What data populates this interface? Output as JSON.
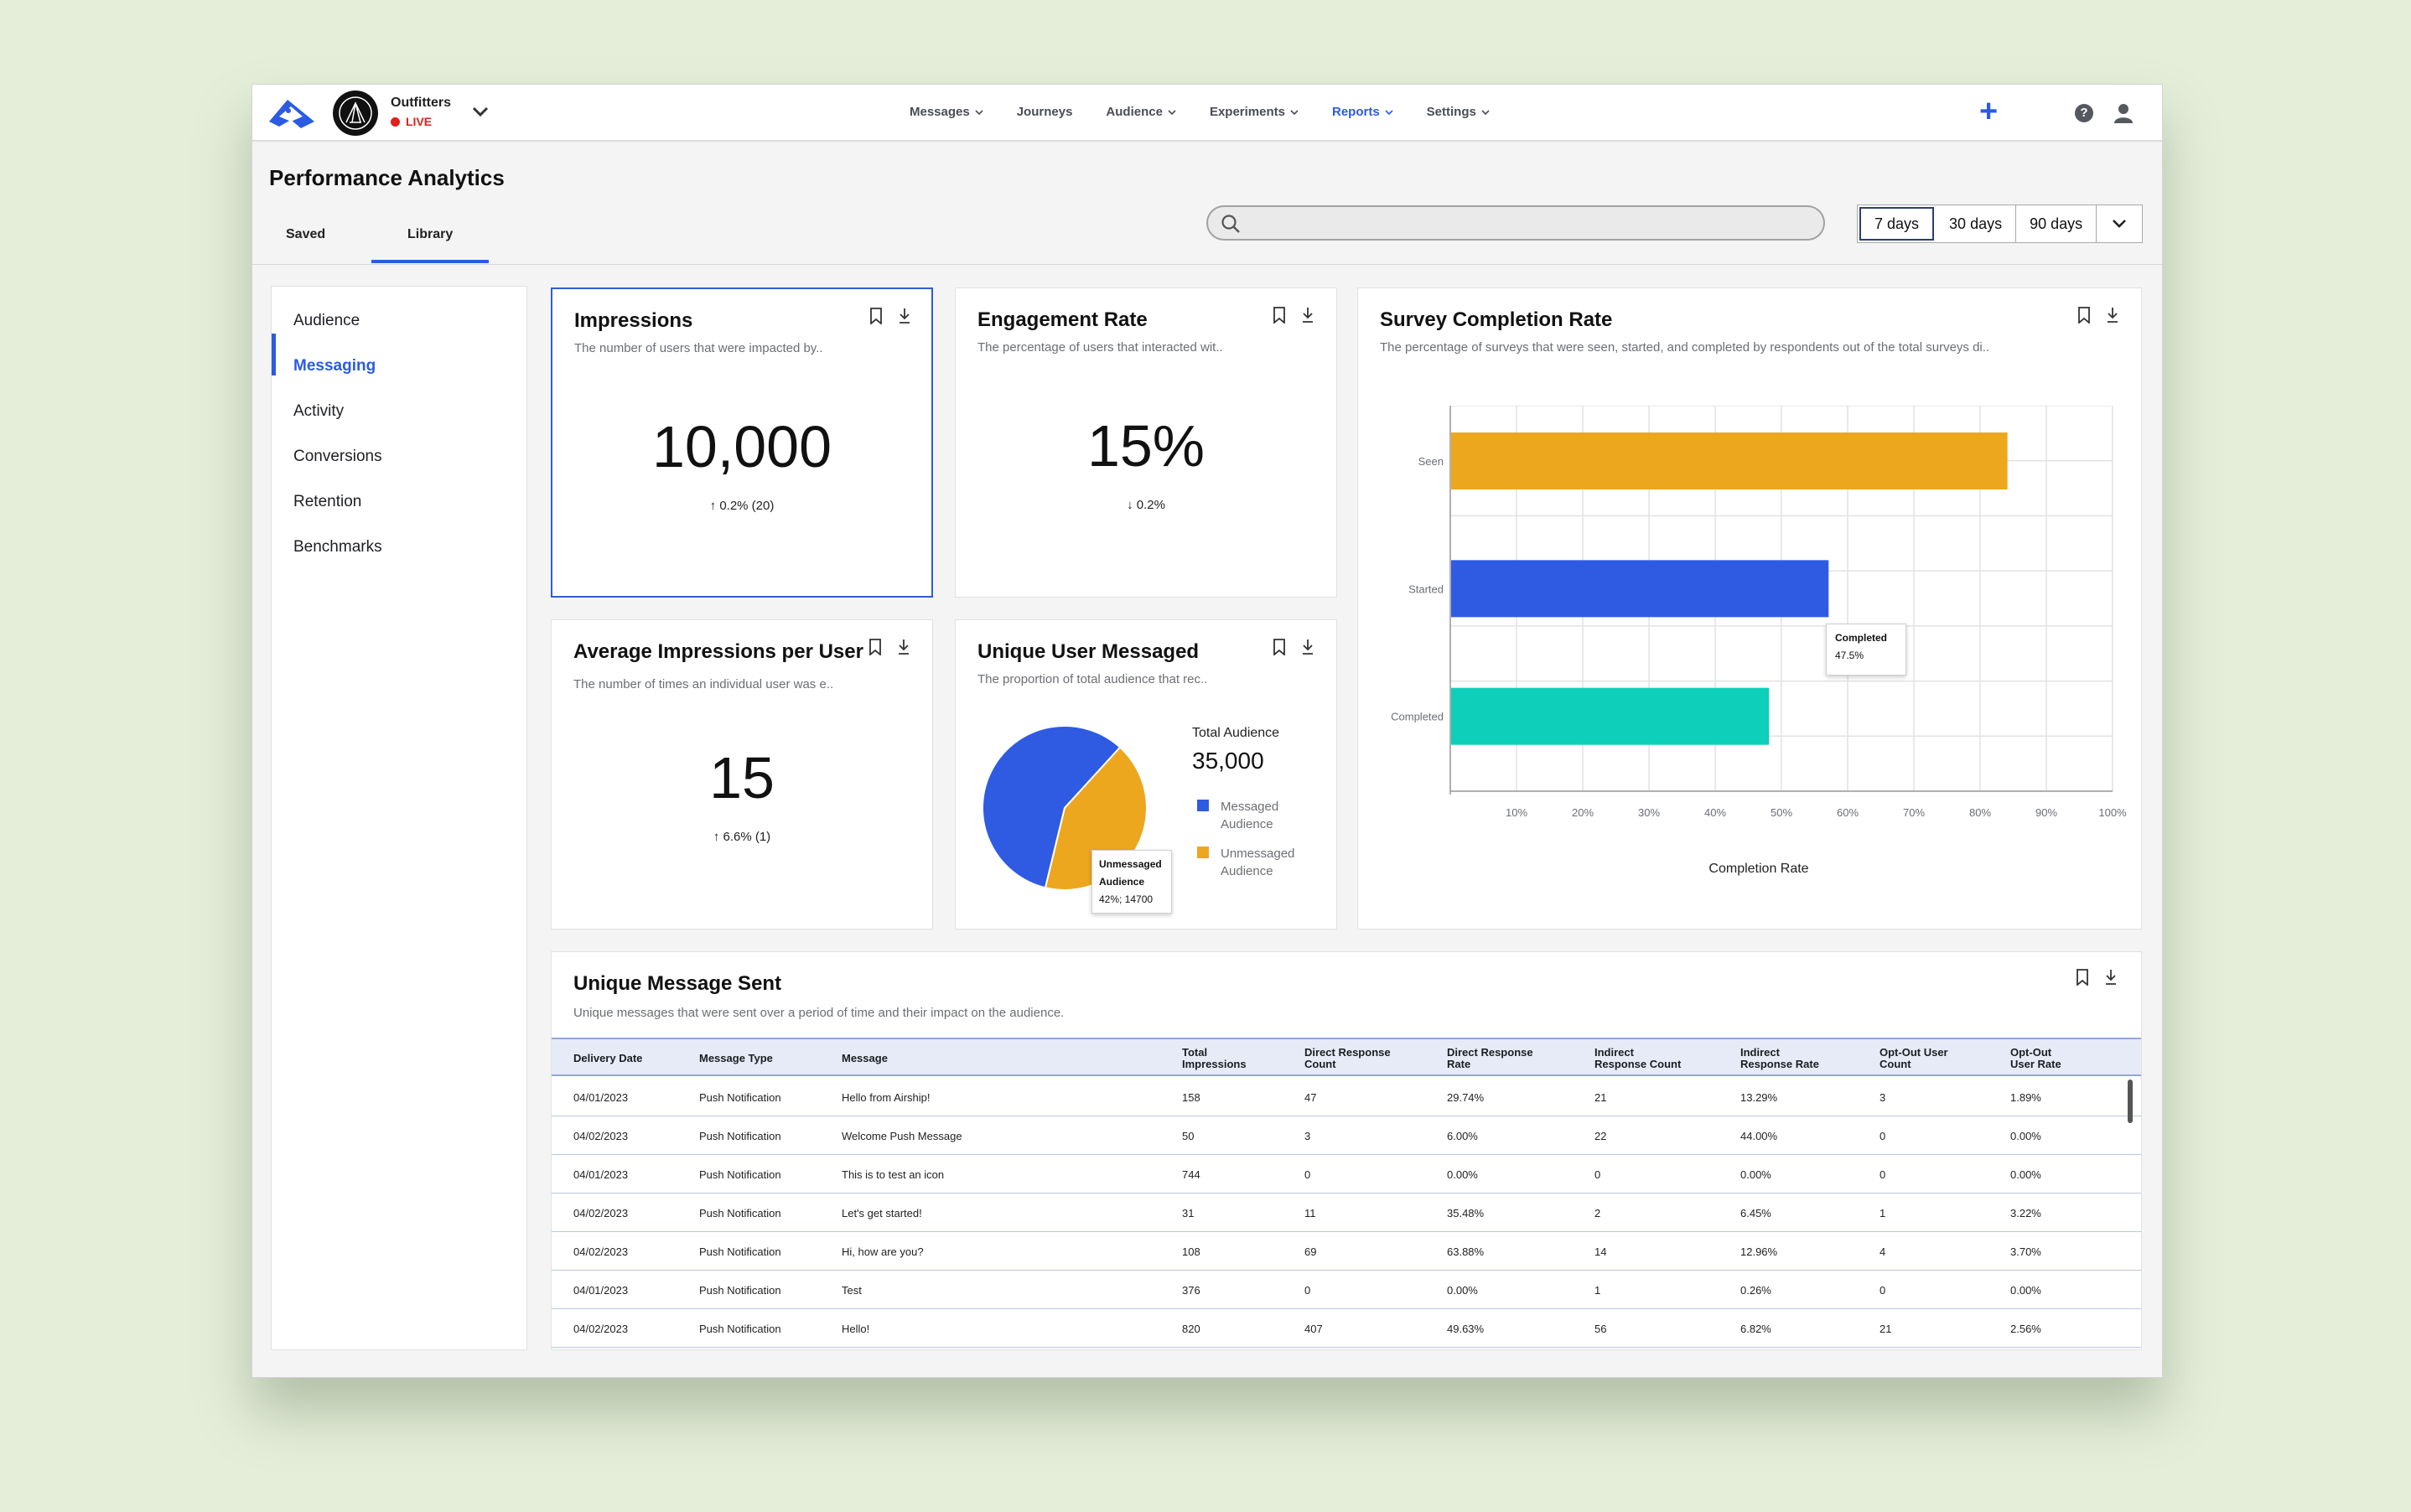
{
  "app": {
    "org_name": "Outfitters",
    "status": "LIVE"
  },
  "nav": [
    {
      "label": "Messages",
      "has_menu": true
    },
    {
      "label": "Journeys",
      "has_menu": false
    },
    {
      "label": "Audience",
      "has_menu": true
    },
    {
      "label": "Experiments",
      "has_menu": true
    },
    {
      "label": "Reports",
      "has_menu": true,
      "active": true
    },
    {
      "label": "Settings",
      "has_menu": true
    }
  ],
  "page": {
    "title": "Performance Analytics",
    "tabs": [
      "Saved",
      "Library"
    ],
    "active_tab": "Library"
  },
  "search": {
    "placeholder": ""
  },
  "date_range": {
    "options": [
      "7 days",
      "30 days",
      "90 days"
    ],
    "selected": "7 days"
  },
  "sidebar": {
    "items": [
      "Audience",
      "Messaging",
      "Activity",
      "Conversions",
      "Retention",
      "Benchmarks"
    ],
    "active": "Messaging"
  },
  "cards": {
    "impressions": {
      "title": "Impressions",
      "desc": "The number of users that were impacted by..",
      "value": "10,000",
      "delta": "0.2% (20)",
      "direction": "up"
    },
    "engagement": {
      "title": "Engagement Rate",
      "desc": "The percentage of users that interacted wit..",
      "value": "15%",
      "delta": "0.2%",
      "direction": "down"
    },
    "avg_impressions": {
      "title": "Average Impressions per User",
      "desc": "The number of times an individual user was e..",
      "value": "15",
      "delta": "6.6% (1)",
      "direction": "up"
    },
    "unique_users": {
      "title": "Unique User Messaged",
      "desc": "The proportion of total audience that rec..",
      "total_label": "Total Audience",
      "total_value": "35,000",
      "legend": [
        {
          "label": "Messaged Audience",
          "color": "#2f5be3"
        },
        {
          "label": "Unmessaged Audience",
          "color": "#eda71e"
        }
      ],
      "tooltip": {
        "line1": "Unmessaged",
        "line2": "Audience",
        "line3": "42%; 14700"
      },
      "chart_data": {
        "type": "pie",
        "categories": [
          "Messaged Audience",
          "Unmessaged Audience"
        ],
        "values": [
          58,
          42
        ]
      }
    },
    "survey": {
      "title": "Survey Completion Rate",
      "desc": "The percentage of surveys that were seen, started, and completed by respondents out of the total surveys di..",
      "xlabel": "Completion Rate",
      "tooltip": {
        "line1": "Completed",
        "line2": "47.5%"
      },
      "chart_data": {
        "type": "bar",
        "orientation": "horizontal",
        "categories": [
          "Seen",
          "Started",
          "Completed"
        ],
        "values": [
          84,
          57,
          48
        ],
        "colors": [
          "#eda71e",
          "#2f5be3",
          "#0ecfba"
        ],
        "xticks": [
          "10%",
          "20%",
          "30%",
          "40%",
          "50%",
          "60%",
          "70%",
          "80%",
          "90%",
          "100%"
        ],
        "xlim": [
          0,
          100
        ],
        "xlabel": "Completion Rate",
        "grid": true
      }
    }
  },
  "table": {
    "title": "Unique Message Sent",
    "desc": "Unique messages that were sent over a period of time and their impact on the audience.",
    "columns": [
      [
        "Delivery Date"
      ],
      [
        "Message Type"
      ],
      [
        "Message"
      ],
      [
        "Total",
        "Impressions"
      ],
      [
        "Direct Response",
        "Count"
      ],
      [
        "Direct Response",
        "Rate"
      ],
      [
        "Indirect",
        "Response Count"
      ],
      [
        "Indirect",
        "Response Rate"
      ],
      [
        "Opt-Out User",
        "Count"
      ],
      [
        "Opt-Out",
        "User Rate"
      ]
    ],
    "rows": [
      [
        "04/01/2023",
        "Push Notification",
        "Hello from Airship!",
        "158",
        "47",
        "29.74%",
        "21",
        "13.29%",
        "3",
        "1.89%"
      ],
      [
        "04/02/2023",
        "Push Notification",
        "Welcome Push Message",
        "50",
        "3",
        "6.00%",
        "22",
        "44.00%",
        "0",
        "0.00%"
      ],
      [
        "04/01/2023",
        "Push Notification",
        "This is to test an icon",
        "744",
        "0",
        "0.00%",
        "0",
        "0.00%",
        "0",
        "0.00%"
      ],
      [
        "04/02/2023",
        "Push Notification",
        "Let's get started!",
        "31",
        "11",
        "35.48%",
        "2",
        "6.45%",
        "1",
        "3.22%"
      ],
      [
        "04/02/2023",
        "Push Notification",
        "Hi, how are you?",
        "108",
        "69",
        "63.88%",
        "14",
        "12.96%",
        "4",
        "3.70%"
      ],
      [
        "04/01/2023",
        "Push Notification",
        "Test",
        "376",
        "0",
        "0.00%",
        "1",
        "0.26%",
        "0",
        "0.00%"
      ],
      [
        "04/02/2023",
        "Push Notification",
        "Hello!",
        "820",
        "407",
        "49.63%",
        "56",
        "6.82%",
        "21",
        "2.56%"
      ]
    ]
  }
}
